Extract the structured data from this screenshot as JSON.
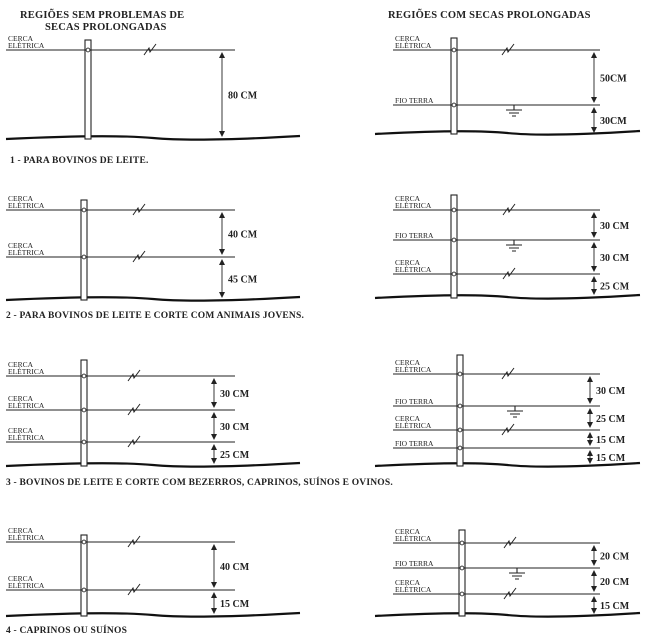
{
  "headers": {
    "left": [
      "REGIÕES SEM PROBLEMAS DE",
      "SECAS PROLONGADAS"
    ],
    "right": [
      "REGIÕES COM SECAS PROLONGADAS"
    ]
  },
  "labels": {
    "cerca": "CERCA",
    "eletrica": "ELÉTRICA",
    "fio_terra": "FIO TERRA"
  },
  "captions": [
    "1 - PARA BOVINOS DE LEITE.",
    "2 - PARA BOVINOS DE LEITE E CORTE COM ANIMAIS JOVENS.",
    "3 - BOVINOS DE LEITE E CORTE COM BEZERROS, CAPRINOS, SUÍNOS E OVINOS.",
    "4 - CAPRINOS OU SUÍNOS"
  ],
  "dimensions": {
    "p1_left": [
      "80 CM"
    ],
    "p1_right": [
      "50CM",
      "30CM"
    ],
    "p2_left": [
      "40 CM",
      "45 CM"
    ],
    "p2_right": [
      "30 CM",
      "30 CM",
      "25 CM"
    ],
    "p3_left": [
      "30 CM",
      "30 CM",
      "25 CM"
    ],
    "p3_right": [
      "30 CM",
      "25 CM",
      "15 CM",
      "15 CM"
    ],
    "p4_left": [
      "40 CM",
      "15 CM"
    ],
    "p4_right": [
      "20 CM",
      "20 CM",
      "15 CM"
    ]
  }
}
